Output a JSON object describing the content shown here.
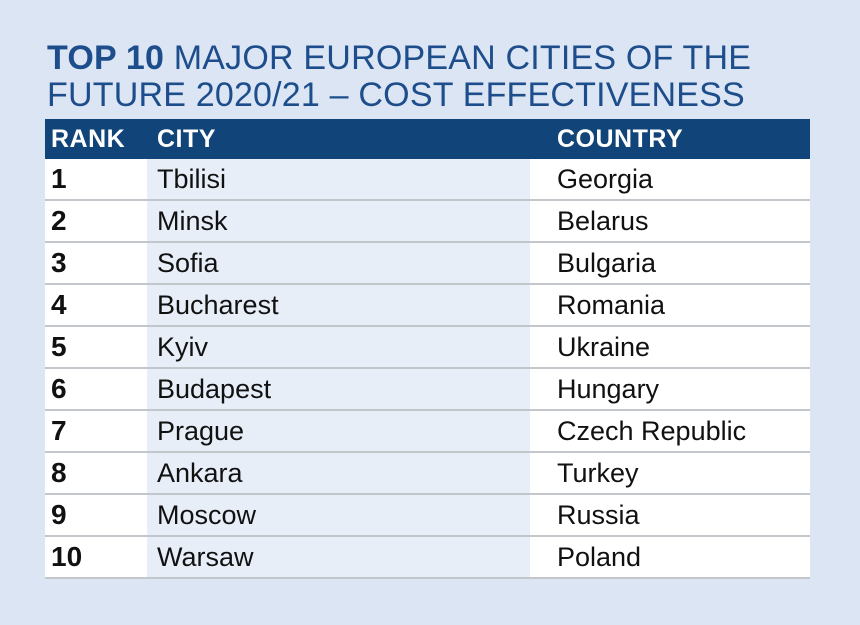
{
  "title": {
    "bold": "TOP 10",
    "rest": " MAJOR EUROPEAN CITIES OF THE FUTURE 2020/21 – COST EFFECTIVENESS"
  },
  "chart_data": {
    "type": "table",
    "title": "TOP 10 MAJOR EUROPEAN CITIES OF THE FUTURE 2020/21 – COST EFFECTIVENESS",
    "columns": [
      "RANK",
      "CITY",
      "COUNTRY"
    ],
    "rows": [
      {
        "rank": "1",
        "city": "Tbilisi",
        "country": "Georgia"
      },
      {
        "rank": "2",
        "city": "Minsk",
        "country": "Belarus"
      },
      {
        "rank": "3",
        "city": "Sofia",
        "country": "Bulgaria"
      },
      {
        "rank": "4",
        "city": "Bucharest",
        "country": "Romania"
      },
      {
        "rank": "5",
        "city": "Kyiv",
        "country": "Ukraine"
      },
      {
        "rank": "6",
        "city": "Budapest",
        "country": "Hungary"
      },
      {
        "rank": "7",
        "city": "Prague",
        "country": "Czech Republic"
      },
      {
        "rank": "8",
        "city": "Ankara",
        "country": "Turkey"
      },
      {
        "rank": "9",
        "city": "Moscow",
        "country": "Russia"
      },
      {
        "rank": "10",
        "city": "Warsaw",
        "country": "Poland"
      }
    ]
  },
  "colors": {
    "background": "#dbe5f4",
    "title": "#1d4d8b",
    "header": "#114478",
    "city_column": "#e7eef8",
    "row_divider": "#c3c6cb"
  }
}
